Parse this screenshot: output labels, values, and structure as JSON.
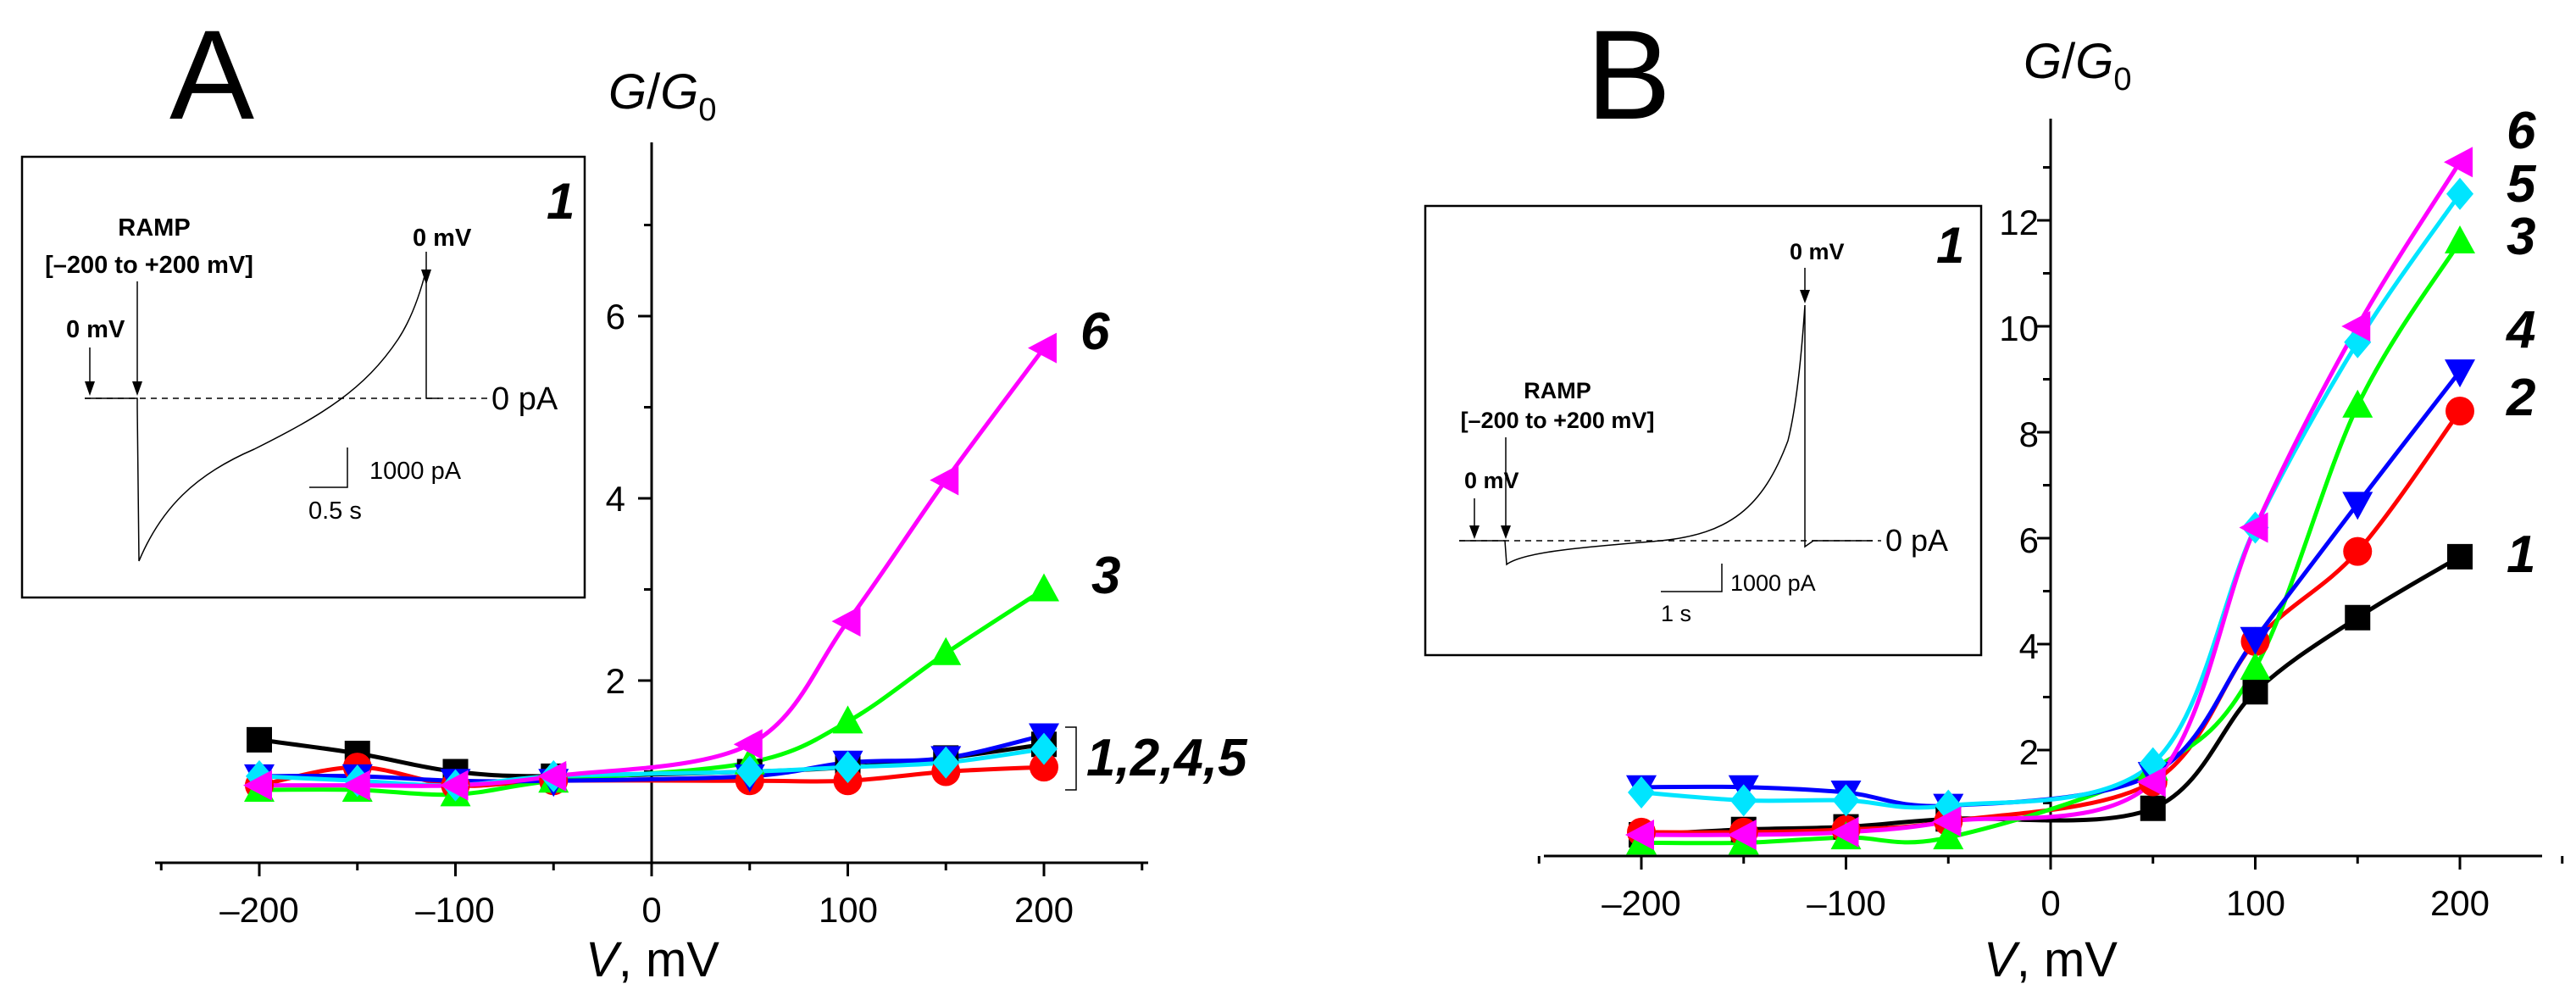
{
  "figure": {
    "panel_a_label": "A",
    "panel_b_label": "B"
  },
  "colors": {
    "s1": "#000000",
    "s2": "#ff0000",
    "s3": "#00ff00",
    "s4": "#0000ff",
    "s5": "#00e5ff",
    "s6": "#ff00ff"
  },
  "chart_data": [
    {
      "panel": "A",
      "type": "line",
      "xlabel_var": "V",
      "xlabel_unit": ", mV",
      "ylabel_var": "G",
      "ylabel_den": "G",
      "ylabel_sub": "0",
      "xlim": [
        -250,
        250
      ],
      "ylim": [
        -0.2,
        7.8
      ],
      "xticks": [
        -200,
        -100,
        0,
        100,
        200
      ],
      "xtick_labels": [
        "–200",
        "–100",
        "0",
        "100",
        "200"
      ],
      "yticks": [
        2,
        4,
        6
      ],
      "ytick_labels": [
        "2",
        "4",
        "6"
      ],
      "series": [
        {
          "name": "1",
          "marker": "square",
          "x": [
            -200,
            -150,
            -100,
            -50,
            50,
            100,
            150,
            200
          ],
          "values": [
            1.35,
            1.2,
            1.0,
            0.95,
            1.0,
            1.05,
            1.15,
            1.3
          ]
        },
        {
          "name": "2",
          "marker": "circle",
          "x": [
            -200,
            -150,
            -100,
            -50,
            50,
            100,
            150,
            200
          ],
          "values": [
            0.85,
            1.05,
            0.85,
            0.9,
            0.9,
            0.9,
            1.0,
            1.05
          ]
        },
        {
          "name": "3",
          "marker": "triangle-up",
          "x": [
            -200,
            -150,
            -100,
            -50,
            50,
            100,
            150,
            200
          ],
          "values": [
            0.8,
            0.8,
            0.75,
            0.9,
            1.1,
            1.55,
            2.3,
            3.0
          ]
        },
        {
          "name": "4",
          "marker": "triangle-down",
          "x": [
            -200,
            -150,
            -100,
            -50,
            50,
            100,
            150,
            200
          ],
          "values": [
            0.95,
            0.95,
            0.9,
            0.9,
            0.95,
            1.1,
            1.15,
            1.4
          ]
        },
        {
          "name": "5",
          "marker": "diamond",
          "x": [
            -200,
            -150,
            -100,
            -50,
            50,
            100,
            150,
            200
          ],
          "values": [
            0.95,
            0.9,
            0.85,
            0.95,
            1.0,
            1.05,
            1.1,
            1.25
          ]
        },
        {
          "name": "6",
          "marker": "triangle-left",
          "x": [
            -200,
            -150,
            -100,
            -50,
            50,
            100,
            150,
            200
          ],
          "values": [
            0.85,
            0.85,
            0.85,
            0.95,
            1.3,
            2.65,
            4.2,
            5.65
          ]
        }
      ],
      "series_labels": [
        "6",
        "3"
      ],
      "group_label": "1,2,4,5",
      "inset": {
        "number": "1",
        "ramp_title": "RAMP",
        "ramp_range": "[–200 to +200 mV]",
        "start_label": "0 mV",
        "end_label": "0 mV",
        "baseline_label": "0 pA",
        "scale_current": "1000 pA",
        "scale_time": "0.5 s"
      }
    },
    {
      "panel": "B",
      "type": "line",
      "xlabel_var": "V",
      "xlabel_unit": ", mV",
      "ylabel_var": "G",
      "ylabel_den": "G",
      "ylabel_sub": "0",
      "xlim": [
        -250,
        250
      ],
      "ylim": [
        0,
        14
      ],
      "xticks": [
        -200,
        -100,
        0,
        100,
        200
      ],
      "xtick_labels": [
        "–200",
        "–100",
        "0",
        "100",
        "200"
      ],
      "yticks": [
        2,
        4,
        6,
        8,
        10,
        12
      ],
      "ytick_labels": [
        "2",
        "4",
        "6",
        "8",
        "10",
        "12"
      ],
      "series": [
        {
          "name": "1",
          "marker": "square",
          "x": [
            -200,
            -150,
            -100,
            -50,
            50,
            100,
            150,
            200
          ],
          "values": [
            0.4,
            0.5,
            0.55,
            0.7,
            0.9,
            3.1,
            4.5,
            5.65
          ]
        },
        {
          "name": "2",
          "marker": "circle",
          "x": [
            -200,
            -150,
            -100,
            -50,
            50,
            100,
            150,
            200
          ],
          "values": [
            0.45,
            0.45,
            0.5,
            0.65,
            1.4,
            4.05,
            5.75,
            8.4
          ]
        },
        {
          "name": "3",
          "marker": "triangle-up",
          "x": [
            -200,
            -150,
            -100,
            -50,
            50,
            100,
            150,
            200
          ],
          "values": [
            0.25,
            0.25,
            0.35,
            0.35,
            1.65,
            3.55,
            8.5,
            11.6
          ]
        },
        {
          "name": "4",
          "marker": "triangle-down",
          "x": [
            -200,
            -150,
            -100,
            -50,
            50,
            100,
            150,
            200
          ],
          "values": [
            1.3,
            1.3,
            1.2,
            0.95,
            1.55,
            4.1,
            6.65,
            9.15
          ]
        },
        {
          "name": "5",
          "marker": "diamond",
          "x": [
            -200,
            -150,
            -100,
            -50,
            50,
            100,
            150,
            200
          ],
          "values": [
            1.2,
            1.05,
            1.05,
            0.95,
            1.75,
            6.2,
            9.7,
            12.5
          ]
        },
        {
          "name": "6",
          "marker": "triangle-left",
          "x": [
            -200,
            -150,
            -100,
            -50,
            50,
            100,
            150,
            200
          ],
          "values": [
            0.4,
            0.4,
            0.45,
            0.65,
            1.4,
            6.2,
            10.0,
            13.1
          ]
        }
      ],
      "series_labels": [
        "6",
        "5",
        "3",
        "4",
        "2",
        "1"
      ],
      "inset": {
        "number": "1",
        "ramp_title": "RAMP",
        "ramp_range": "[–200 to +200 mV]",
        "start_label": "0 mV",
        "end_label": "0 mV",
        "baseline_label": "0 pA",
        "scale_current": "1000 pA",
        "scale_time": "1 s"
      }
    }
  ]
}
